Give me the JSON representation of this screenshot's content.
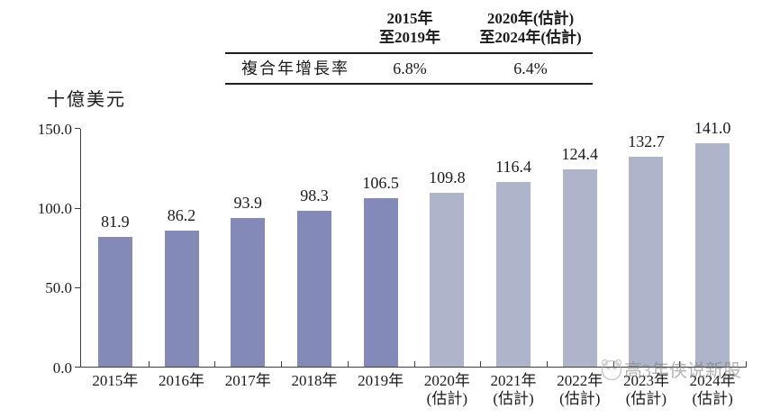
{
  "cagr_table": {
    "row_label": "複合年增長率",
    "columns": [
      {
        "title_line1": "2015年",
        "title_line2": "至2019年",
        "value": "6.8%"
      },
      {
        "title_line1": "2020年(估計)",
        "title_line2": "至2024年(估計)",
        "value": "6.4%"
      }
    ]
  },
  "chart_data": {
    "type": "bar",
    "title": "",
    "ylabel": "十億美元",
    "ylim": [
      0,
      150
    ],
    "yticks": [
      0,
      50,
      100,
      150
    ],
    "ytick_labels": [
      "0.0",
      "50.0",
      "100.0",
      "150.0"
    ],
    "categories": [
      {
        "label": "2015年",
        "sublabel": ""
      },
      {
        "label": "2016年",
        "sublabel": ""
      },
      {
        "label": "2017年",
        "sublabel": ""
      },
      {
        "label": "2018年",
        "sublabel": ""
      },
      {
        "label": "2019年",
        "sublabel": ""
      },
      {
        "label": "2020年",
        "sublabel": "(估計)"
      },
      {
        "label": "2021年",
        "sublabel": "(估計)"
      },
      {
        "label": "2022年",
        "sublabel": "(估計)"
      },
      {
        "label": "2023年",
        "sublabel": "(估計)"
      },
      {
        "label": "2024年",
        "sublabel": "(估計)"
      }
    ],
    "values": [
      81.9,
      86.2,
      93.9,
      98.3,
      106.5,
      109.8,
      116.4,
      124.4,
      132.7,
      141.0
    ],
    "value_labels": [
      "81.9",
      "86.2",
      "93.9",
      "98.3",
      "106.5",
      "109.8",
      "116.4",
      "124.4",
      "132.7",
      "141.0"
    ],
    "estimate_from_index": 5,
    "colors": {
      "bar_actual": "#838AB8",
      "bar_estimate": "#AEB4C9",
      "axis": "#3f3f3f"
    },
    "legend": null,
    "grid": false
  },
  "watermark": {
    "icon": "mascot-face-icon",
    "text": "高3年侠说新股"
  }
}
